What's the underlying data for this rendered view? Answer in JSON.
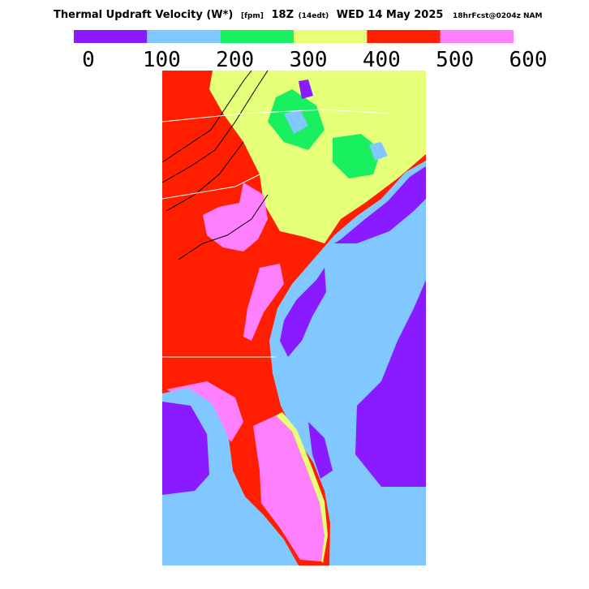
{
  "header": {
    "parts": [
      "Thermal Updraft Velocity (W*)",
      "[fpm]",
      "18Z",
      "(14edt)",
      "WED 14 May 2025",
      "18hrFcst@0204z NAM"
    ]
  },
  "legend": {
    "colors": [
      "#8a1aff",
      "#80c8ff",
      "#18f060",
      "#e6ff78",
      "#ff1e00",
      "#ff80ff"
    ],
    "ticks": [
      0,
      100,
      200,
      300,
      400,
      500,
      600
    ]
  }
}
